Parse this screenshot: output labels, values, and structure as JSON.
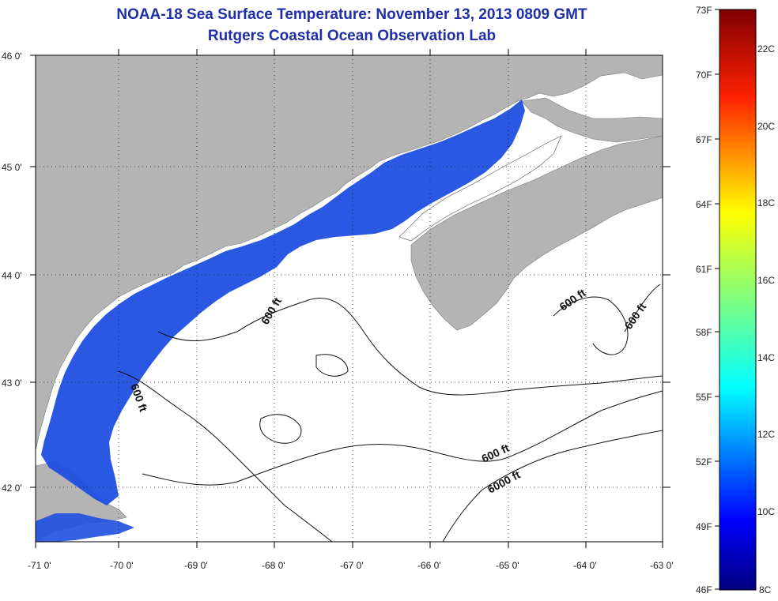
{
  "title": {
    "line1": "NOAA-18 Sea Surface Temperature:  November 13, 2013 0809 GMT",
    "line2": "Rutgers Coastal Ocean Observation Lab"
  },
  "axes": {
    "lon_labels": [
      "-71 0'",
      "-70 0'",
      "-69 0'",
      "-68 0'",
      "-67 0'",
      "-66 0'",
      "-65 0'",
      "-64 0'",
      "-63 0'"
    ],
    "lat_labels": [
      "46 0'",
      "45 0'",
      "44 0'",
      "43 0'",
      "42 0'"
    ],
    "lon_range": [
      -71,
      -63
    ],
    "lat_range": [
      41.5,
      46
    ]
  },
  "contour_labels": [
    "600 ft",
    "600 ft",
    "600 ft",
    "600 ft",
    "600 ft",
    "6000 ft"
  ],
  "colorbar": {
    "fahrenheit": [
      "73F",
      "70F",
      "67F",
      "64F",
      "61F",
      "58F",
      "55F",
      "52F",
      "49F",
      "46F"
    ],
    "celsius": [
      "22C",
      "20C",
      "18C",
      "16C",
      "14C",
      "12C",
      "10C",
      "8C"
    ]
  },
  "colors": {
    "land": "#b4b4b4",
    "water_sst": "#1f4fe0",
    "title": "#1f2fa8"
  }
}
